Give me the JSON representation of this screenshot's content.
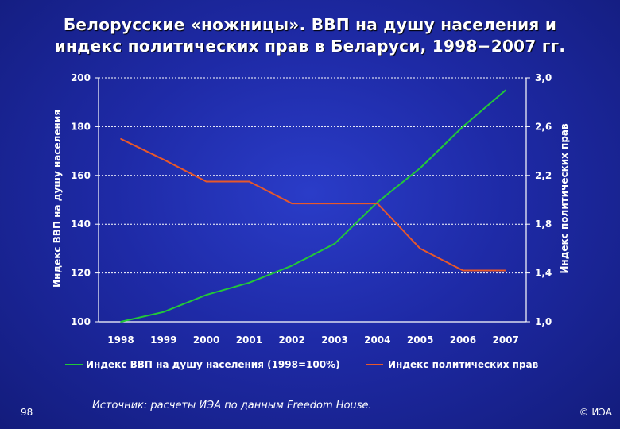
{
  "title_line1": "Белорусские «ножницы». ВВП на душу населения и",
  "title_line2": "индекс политических прав в Беларуси, 1998−2007 гг.",
  "page_number": "98",
  "source": "Источник: расчеты ИЭА по данным Freedom House.",
  "copyright": "© ИЭА",
  "colors": {
    "gdp": "#22c838",
    "rights": "#e8582a",
    "grid": "#ffffff"
  },
  "chart_data": {
    "type": "line",
    "categories": [
      "1998",
      "1999",
      "2000",
      "2001",
      "2002",
      "2003",
      "2004",
      "2005",
      "2006",
      "2007"
    ],
    "ylabel": "Индекс ВВП на душу населения",
    "y2label": "Индекс политических прав",
    "ylim": [
      100,
      200
    ],
    "y2lim": [
      1.0,
      3.0
    ],
    "yticks": [
      "100",
      "120",
      "140",
      "160",
      "180",
      "200"
    ],
    "y2ticks": [
      "1,0",
      "1,4",
      "1,8",
      "2,2",
      "2,6",
      "3,0"
    ],
    "grid": true,
    "legend_position": "bottom",
    "series": [
      {
        "name": "Индекс ВВП на душу населения (1998=100%)",
        "axis": "left",
        "values": [
          100,
          104,
          111,
          116,
          123,
          132,
          149,
          163,
          180,
          195
        ]
      },
      {
        "name": "Индекс политических прав",
        "axis": "right",
        "values": [
          2.5,
          2.33,
          2.15,
          2.15,
          1.97,
          1.97,
          1.97,
          1.6,
          1.42,
          1.42
        ]
      }
    ]
  }
}
